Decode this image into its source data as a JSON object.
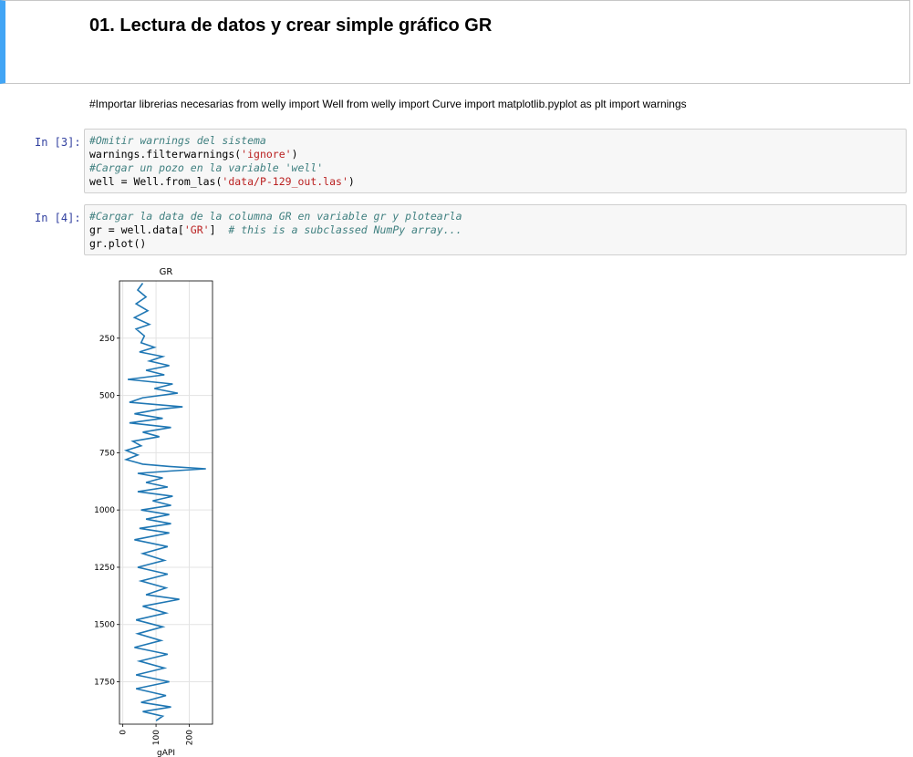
{
  "markdown": {
    "title": "01. Lectura de datos y crear simple gráfico GR",
    "text": "#Importar librerias necesarias from welly import Well from welly import Curve import matplotlib.pyplot as plt import warnings"
  },
  "cells": [
    {
      "prompt": "In [3]:",
      "lines": [
        [
          {
            "t": "#Omitir warnings del sistema",
            "c": "cm"
          }
        ],
        [
          {
            "t": "warnings.filterwarnings(",
            "c": "op"
          },
          {
            "t": "'ignore'",
            "c": "str"
          },
          {
            "t": ")",
            "c": "op"
          }
        ],
        [
          {
            "t": "#Cargar un pozo en la variable 'well'",
            "c": "cm"
          }
        ],
        [
          {
            "t": "well = Well.from_las(",
            "c": "op"
          },
          {
            "t": "'data/P-129_out.las'",
            "c": "str"
          },
          {
            "t": ")",
            "c": "op"
          }
        ]
      ]
    },
    {
      "prompt": "In [4]:",
      "lines": [
        [
          {
            "t": "#Cargar la data de la columna GR en variable gr y plotearla",
            "c": "cm"
          }
        ],
        [
          {
            "t": "gr = well.data[",
            "c": "op"
          },
          {
            "t": "'GR'",
            "c": "str"
          },
          {
            "t": "]  ",
            "c": "op"
          },
          {
            "t": "# this is a subclassed NumPy array...",
            "c": "cm"
          }
        ],
        [
          {
            "t": "gr.plot()",
            "c": "op"
          }
        ]
      ]
    }
  ],
  "chart_data": {
    "type": "line",
    "title": "GR",
    "xlabel": "gAPI",
    "ylabel": "",
    "xlim": [
      -10,
      270
    ],
    "ylim": [
      1935,
      0
    ],
    "y_inverted": true,
    "xticks": [
      0,
      100,
      200
    ],
    "yticks": [
      250,
      500,
      750,
      1000,
      1250,
      1500,
      1750
    ],
    "grid": true,
    "color": "#1f77b4",
    "series": [
      {
        "values": [
          [
            60,
            10
          ],
          [
            45,
            40
          ],
          [
            70,
            70
          ],
          [
            40,
            100
          ],
          [
            75,
            130
          ],
          [
            35,
            160
          ],
          [
            80,
            190
          ],
          [
            40,
            210
          ],
          [
            65,
            240
          ],
          [
            55,
            270
          ],
          [
            95,
            290
          ],
          [
            50,
            310
          ],
          [
            120,
            330
          ],
          [
            80,
            350
          ],
          [
            140,
            370
          ],
          [
            70,
            390
          ],
          [
            125,
            410
          ],
          [
            15,
            430
          ],
          [
            150,
            450
          ],
          [
            95,
            470
          ],
          [
            165,
            490
          ],
          [
            60,
            510
          ],
          [
            20,
            530
          ],
          [
            180,
            550
          ],
          [
            110,
            560
          ],
          [
            35,
            580
          ],
          [
            120,
            600
          ],
          [
            20,
            620
          ],
          [
            145,
            640
          ],
          [
            60,
            660
          ],
          [
            110,
            680
          ],
          [
            30,
            700
          ],
          [
            55,
            720
          ],
          [
            10,
            740
          ],
          [
            45,
            760
          ],
          [
            10,
            780
          ],
          [
            60,
            800
          ],
          [
            140,
            810
          ],
          [
            250,
            820
          ],
          [
            140,
            830
          ],
          [
            45,
            840
          ],
          [
            120,
            860
          ],
          [
            70,
            880
          ],
          [
            135,
            900
          ],
          [
            45,
            920
          ],
          [
            150,
            940
          ],
          [
            90,
            960
          ],
          [
            145,
            980
          ],
          [
            55,
            1000
          ],
          [
            140,
            1020
          ],
          [
            70,
            1040
          ],
          [
            145,
            1060
          ],
          [
            50,
            1080
          ],
          [
            140,
            1100
          ],
          [
            35,
            1130
          ],
          [
            135,
            1160
          ],
          [
            60,
            1190
          ],
          [
            125,
            1220
          ],
          [
            45,
            1250
          ],
          [
            135,
            1280
          ],
          [
            55,
            1310
          ],
          [
            130,
            1340
          ],
          [
            70,
            1370
          ],
          [
            170,
            1390
          ],
          [
            60,
            1420
          ],
          [
            130,
            1450
          ],
          [
            40,
            1480
          ],
          [
            120,
            1510
          ],
          [
            45,
            1540
          ],
          [
            115,
            1570
          ],
          [
            35,
            1600
          ],
          [
            135,
            1630
          ],
          [
            50,
            1660
          ],
          [
            125,
            1690
          ],
          [
            40,
            1720
          ],
          [
            140,
            1750
          ],
          [
            40,
            1780
          ],
          [
            130,
            1810
          ],
          [
            55,
            1840
          ],
          [
            145,
            1860
          ],
          [
            60,
            1880
          ],
          [
            120,
            1900
          ],
          [
            100,
            1920
          ]
        ]
      }
    ]
  }
}
